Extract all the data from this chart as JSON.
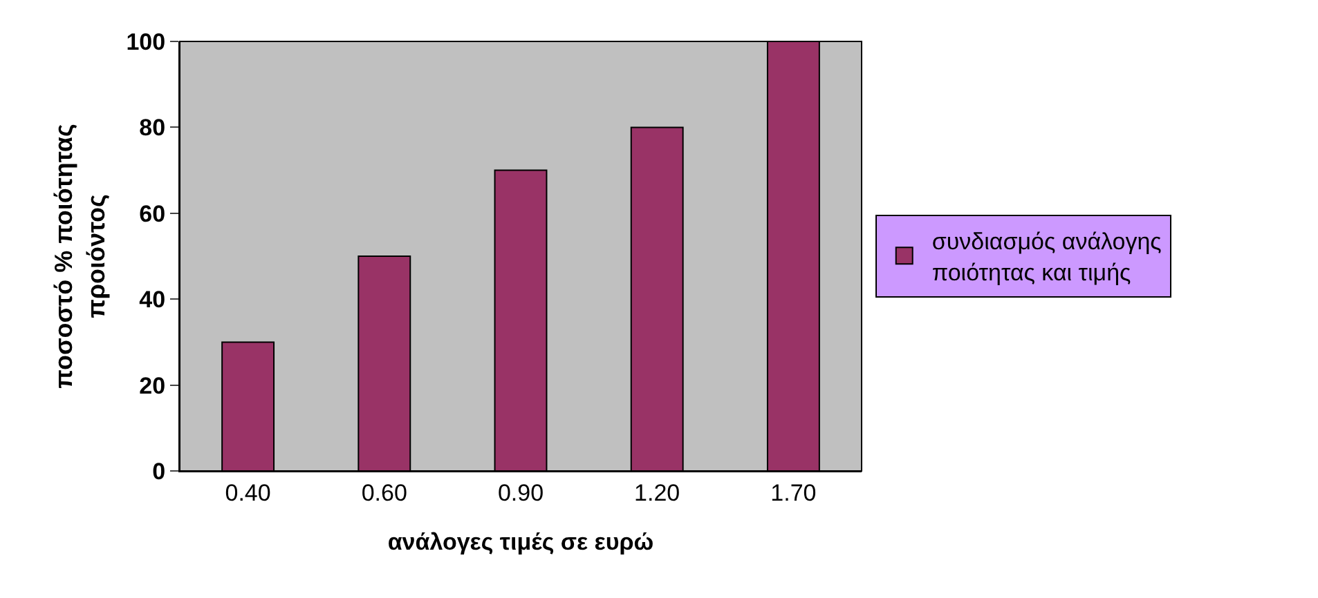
{
  "chart_data": {
    "type": "bar",
    "xlabel": "ανάλογες τιμές σε ευρώ",
    "ylabel": "ποσοστό % ποιότητας\nπροιόντος",
    "categories": [
      "0.40",
      "0.60",
      "0.90",
      "1.20",
      "1.70"
    ],
    "series": [
      {
        "name": "συνδιασμός ανάλογης\nποιότητας και τιμής",
        "color": "#993366",
        "values": [
          30,
          50,
          70,
          80,
          100
        ]
      }
    ],
    "ylim": [
      0,
      100
    ],
    "yticks": [
      0,
      20,
      40,
      60,
      80,
      100
    ],
    "grid": false,
    "legend": "right"
  }
}
